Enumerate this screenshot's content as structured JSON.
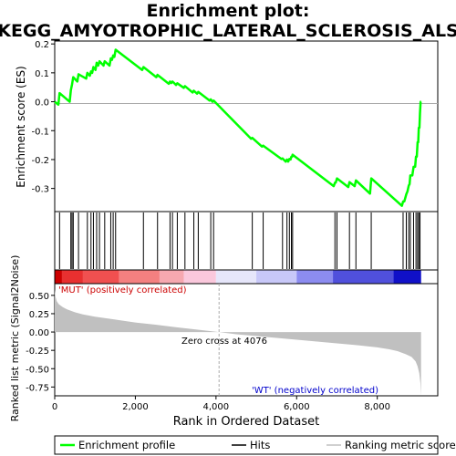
{
  "chart_data": {
    "type": "line",
    "title_line1": "Enrichment plot:",
    "title_line2": "KEGG_AMYOTROPHIC_LATERAL_SCLEROSIS_ALS",
    "xlabel": "Rank in Ordered Dataset",
    "es_ylabel": "Enrichment score (ES)",
    "metric_ylabel": "Ranked list metric (Signal2Noise)",
    "xlim": [
      0,
      9500
    ],
    "es_ylim": [
      -0.38,
      0.21
    ],
    "metric_ylim": [
      -0.87,
      0.66
    ],
    "x_ticks": [
      0,
      2000,
      4000,
      6000,
      8000
    ],
    "x_tick_labels": [
      "0",
      "2,000",
      "4,000",
      "6,000",
      "8,000"
    ],
    "es_ticks": [
      0.2,
      0.1,
      0.0,
      -0.1,
      -0.2,
      -0.3
    ],
    "es_tick_labels": [
      "0.2",
      "0.1",
      "0.0",
      "-0.1",
      "-0.2",
      "-0.3"
    ],
    "metric_ticks": [
      0.5,
      0.25,
      0.0,
      -0.25,
      -0.5,
      -0.75
    ],
    "metric_tick_labels": [
      "0.50",
      "0.25",
      "0.00",
      "-0.25",
      "-0.50",
      "-0.75"
    ],
    "annotation_pos": "'MUT' (positively correlated)",
    "annotation_neg": "'WT' (negatively correlated)",
    "zero_cross_label": "Zero cross at 4076",
    "zero_cross": 4076,
    "n_genes": 9087,
    "legend": [
      {
        "label": "Enrichment profile",
        "color": "#00ff00"
      },
      {
        "label": "Hits",
        "color": "#000000"
      },
      {
        "label": "Ranking metric scores",
        "color": "#c0c0c0"
      }
    ],
    "colors": {
      "es_line": "#00ff00",
      "hits": "#000000",
      "metric_fill": "#c0c0c0",
      "zero_line": "#aaaaaa",
      "zero_cross_line": "#aaaaaa"
    },
    "hits": [
      120,
      400,
      430,
      460,
      590,
      810,
      900,
      960,
      1040,
      1110,
      1240,
      1390,
      1450,
      1510,
      2200,
      2550,
      2860,
      2920,
      3040,
      3230,
      3450,
      3560,
      3870,
      3940,
      4900,
      5170,
      5650,
      5760,
      5820,
      5870,
      5900,
      6950,
      7000,
      7310,
      7470,
      7850,
      8640,
      8720,
      8780,
      8820,
      8900,
      8960,
      9000,
      9030,
      9060
    ],
    "es_points": [
      [
        0,
        0.0
      ],
      [
        90,
        -0.01
      ],
      [
        120,
        0.03
      ],
      [
        370,
        0.0
      ],
      [
        400,
        0.04
      ],
      [
        430,
        0.06
      ],
      [
        460,
        0.085
      ],
      [
        560,
        0.07
      ],
      [
        590,
        0.095
      ],
      [
        780,
        0.08
      ],
      [
        810,
        0.1
      ],
      [
        870,
        0.09
      ],
      [
        900,
        0.105
      ],
      [
        930,
        0.1
      ],
      [
        960,
        0.12
      ],
      [
        1010,
        0.11
      ],
      [
        1040,
        0.135
      ],
      [
        1080,
        0.125
      ],
      [
        1110,
        0.14
      ],
      [
        1210,
        0.125
      ],
      [
        1240,
        0.14
      ],
      [
        1360,
        0.125
      ],
      [
        1390,
        0.15
      ],
      [
        1420,
        0.145
      ],
      [
        1450,
        0.16
      ],
      [
        1480,
        0.155
      ],
      [
        1510,
        0.18
      ],
      [
        2170,
        0.11
      ],
      [
        2200,
        0.12
      ],
      [
        2520,
        0.085
      ],
      [
        2550,
        0.093
      ],
      [
        2830,
        0.062
      ],
      [
        2860,
        0.07
      ],
      [
        2890,
        0.065
      ],
      [
        2920,
        0.07
      ],
      [
        3010,
        0.058
      ],
      [
        3040,
        0.064
      ],
      [
        3200,
        0.048
      ],
      [
        3230,
        0.054
      ],
      [
        3420,
        0.032
      ],
      [
        3450,
        0.038
      ],
      [
        3530,
        0.028
      ],
      [
        3560,
        0.034
      ],
      [
        3840,
        0.004
      ],
      [
        3870,
        0.008
      ],
      [
        3910,
        0.0
      ],
      [
        3940,
        0.004
      ],
      [
        4870,
        -0.128
      ],
      [
        4900,
        -0.125
      ],
      [
        5140,
        -0.155
      ],
      [
        5170,
        -0.152
      ],
      [
        5620,
        -0.198
      ],
      [
        5650,
        -0.196
      ],
      [
        5730,
        -0.207
      ],
      [
        5760,
        -0.2
      ],
      [
        5790,
        -0.207
      ],
      [
        5820,
        -0.198
      ],
      [
        5850,
        -0.2
      ],
      [
        5870,
        -0.19
      ],
      [
        5890,
        -0.19
      ],
      [
        5900,
        -0.183
      ],
      [
        6920,
        -0.292
      ],
      [
        6950,
        -0.28
      ],
      [
        6970,
        -0.28
      ],
      [
        7000,
        -0.265
      ],
      [
        7280,
        -0.295
      ],
      [
        7310,
        -0.278
      ],
      [
        7440,
        -0.292
      ],
      [
        7470,
        -0.272
      ],
      [
        7820,
        -0.318
      ],
      [
        7850,
        -0.265
      ],
      [
        8610,
        -0.36
      ],
      [
        8640,
        -0.345
      ],
      [
        8670,
        -0.345
      ],
      [
        8720,
        -0.32
      ],
      [
        8750,
        -0.31
      ],
      [
        8780,
        -0.29
      ],
      [
        8800,
        -0.285
      ],
      [
        8820,
        -0.255
      ],
      [
        8870,
        -0.255
      ],
      [
        8900,
        -0.225
      ],
      [
        8940,
        -0.225
      ],
      [
        8960,
        -0.19
      ],
      [
        8980,
        -0.19
      ],
      [
        9000,
        -0.14
      ],
      [
        9015,
        -0.14
      ],
      [
        9030,
        -0.09
      ],
      [
        9045,
        -0.09
      ],
      [
        9060,
        -0.04
      ],
      [
        9075,
        0.0
      ],
      [
        9087,
        0.0
      ]
    ],
    "metric_points": [
      [
        0,
        0.58
      ],
      [
        20,
        0.48
      ],
      [
        50,
        0.42
      ],
      [
        100,
        0.38
      ],
      [
        200,
        0.34
      ],
      [
        300,
        0.31
      ],
      [
        500,
        0.27
      ],
      [
        700,
        0.24
      ],
      [
        1000,
        0.21
      ],
      [
        1500,
        0.17
      ],
      [
        2000,
        0.13
      ],
      [
        2500,
        0.1
      ],
      [
        3000,
        0.065
      ],
      [
        3500,
        0.035
      ],
      [
        4000,
        0.005
      ],
      [
        4076,
        0.0
      ],
      [
        4500,
        -0.03
      ],
      [
        5000,
        -0.055
      ],
      [
        5500,
        -0.08
      ],
      [
        6000,
        -0.105
      ],
      [
        6500,
        -0.13
      ],
      [
        7000,
        -0.155
      ],
      [
        7500,
        -0.18
      ],
      [
        8000,
        -0.21
      ],
      [
        8300,
        -0.235
      ],
      [
        8500,
        -0.26
      ],
      [
        8700,
        -0.3
      ],
      [
        8850,
        -0.34
      ],
      [
        8950,
        -0.4
      ],
      [
        9000,
        -0.47
      ],
      [
        9040,
        -0.56
      ],
      [
        9070,
        -0.7
      ],
      [
        9087,
        -0.87
      ]
    ]
  }
}
